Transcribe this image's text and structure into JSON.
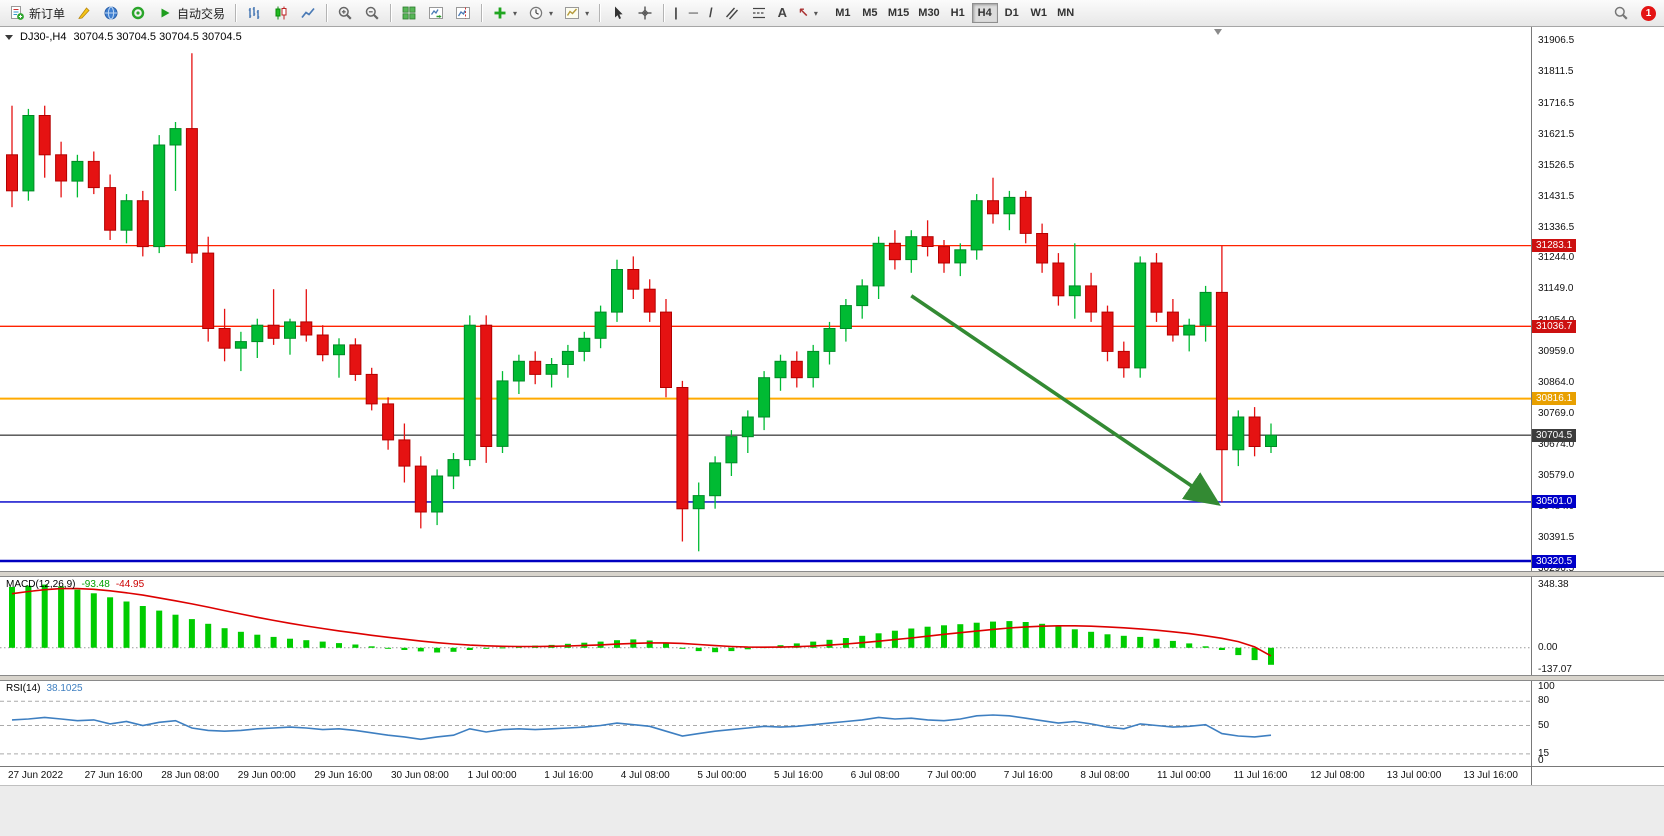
{
  "app": {
    "notification_count": "1"
  },
  "icons": {
    "vertical_line": "|",
    "horizontal_line": "─",
    "trendline": "/",
    "text_tool": "A",
    "arrows_tool": "↖",
    "dropdown_caret": "▾"
  },
  "toolbar": {
    "new_order_label": "新订单",
    "autotrading_label": "自动交易",
    "timeframes": [
      "M1",
      "M5",
      "M15",
      "M30",
      "H1",
      "H4",
      "D1",
      "W1",
      "MN"
    ],
    "active_timeframe": "H4"
  },
  "chart": {
    "title_symbol": "DJ30-,H4",
    "title_quote": "30704.5 30704.5 30704.5 30704.5",
    "price_axis_labels": [
      "31906.5",
      "31811.5",
      "31716.5",
      "31621.5",
      "31526.5",
      "31431.5",
      "31336.5",
      "31244.0",
      "31149.0",
      "31054.0",
      "30959.0",
      "30864.0",
      "30769.0",
      "30674.0",
      "30579.0",
      "30484.0",
      "30391.5",
      "30296.5"
    ],
    "price_badges": [
      {
        "text": "31283.1",
        "bg": "#cc1010"
      },
      {
        "text": "31036.7",
        "bg": "#cc1010"
      },
      {
        "text": "30816.1",
        "bg": "#e8a000"
      },
      {
        "text": "30704.5",
        "bg": "#3c3c3c"
      },
      {
        "text": "30501.0",
        "bg": "#0000c8"
      },
      {
        "text": "30320.5",
        "bg": "#0000c8"
      }
    ],
    "time_axis_labels": [
      "27 Jun 2022",
      "27 Jun 16:00",
      "28 Jun 08:00",
      "29 Jun 00:00",
      "29 Jun 16:00",
      "30 Jun 08:00",
      "1 Jul 00:00",
      "1 Jul 16:00",
      "4 Jul 08:00",
      "5 Jul 00:00",
      "5 Jul 16:00",
      "6 Jul 08:00",
      "7 Jul 00:00",
      "7 Jul 16:00",
      "8 Jul 08:00",
      "11 Jul 00:00",
      "11 Jul 16:00",
      "12 Jul 08:00",
      "13 Jul 00:00",
      "13 Jul 16:00"
    ]
  },
  "macd_panel": {
    "label": "MACD(12,26,9)",
    "main_value": "-93.48",
    "signal_value": "-44.95",
    "axis_labels": [
      "348.38",
      "0.00",
      "-137.07"
    ]
  },
  "rsi_panel": {
    "label": "RSI(14)",
    "value": "38.1025",
    "axis_labels": [
      "100",
      "80",
      "50",
      "15",
      "0"
    ],
    "levels": [
      80,
      50,
      15
    ]
  },
  "chart_data": {
    "type": "candlestick",
    "title": "DJ30-,H4",
    "symbol": "DJ30-",
    "timeframe": "H4",
    "price_range": [
      30296.5,
      31906.5
    ],
    "colors": {
      "bull": "#00bb33",
      "bull_border": "#008a26",
      "bear": "#e51212",
      "bear_border": "#b30000",
      "macd_histogram": "#00cc00",
      "macd_signal": "#dd0000",
      "rsi_line": "#3e7fc1",
      "arrow": "#338a33"
    },
    "hlines": [
      {
        "price": 31283.1,
        "color": "#ff2200",
        "width": 1.3
      },
      {
        "price": 31036.7,
        "color": "#ff2200",
        "width": 1.3
      },
      {
        "price": 30816.1,
        "color": "#ffaa00",
        "width": 2
      },
      {
        "price": 30704.5,
        "color": "#4a4a4a",
        "width": 1.3
      },
      {
        "price": 30501.0,
        "color": "#2020d0",
        "width": 1.6
      },
      {
        "price": 30320.5,
        "color": "#0000c0",
        "width": 2.6
      }
    ],
    "arrow": {
      "from_index": 55,
      "from_price": 31130,
      "to_index": 74,
      "to_price": 30495
    },
    "ohlc": [
      [
        31560,
        31710,
        31400,
        31450
      ],
      [
        31450,
        31700,
        31420,
        31680
      ],
      [
        31680,
        31710,
        31490,
        31560
      ],
      [
        31560,
        31600,
        31430,
        31480
      ],
      [
        31480,
        31560,
        31430,
        31540
      ],
      [
        31540,
        31570,
        31440,
        31460
      ],
      [
        31460,
        31500,
        31300,
        31330
      ],
      [
        31330,
        31440,
        31290,
        31420
      ],
      [
        31420,
        31450,
        31250,
        31280
      ],
      [
        31280,
        31620,
        31260,
        31590
      ],
      [
        31590,
        31660,
        31450,
        31640
      ],
      [
        31640,
        31870,
        31230,
        31260
      ],
      [
        31260,
        31310,
        30990,
        31030
      ],
      [
        31030,
        31090,
        30930,
        30970
      ],
      [
        30970,
        31020,
        30900,
        30990
      ],
      [
        30990,
        31060,
        30940,
        31040
      ],
      [
        31040,
        31150,
        30980,
        31000
      ],
      [
        31000,
        31060,
        30950,
        31050
      ],
      [
        31050,
        31150,
        30990,
        31010
      ],
      [
        31010,
        31040,
        30930,
        30950
      ],
      [
        30950,
        31000,
        30880,
        30980
      ],
      [
        30980,
        31000,
        30870,
        30890
      ],
      [
        30890,
        30910,
        30780,
        30800
      ],
      [
        30800,
        30820,
        30660,
        30690
      ],
      [
        30690,
        30740,
        30560,
        30610
      ],
      [
        30610,
        30640,
        30420,
        30470
      ],
      [
        30470,
        30600,
        30430,
        30580
      ],
      [
        30580,
        30650,
        30540,
        30630
      ],
      [
        30630,
        31070,
        30610,
        31040
      ],
      [
        31040,
        31070,
        30620,
        30670
      ],
      [
        30670,
        30900,
        30650,
        30870
      ],
      [
        30870,
        30950,
        30830,
        30930
      ],
      [
        30930,
        30960,
        30860,
        30890
      ],
      [
        30890,
        30940,
        30850,
        30920
      ],
      [
        30920,
        30980,
        30880,
        30960
      ],
      [
        30960,
        31020,
        30930,
        31000
      ],
      [
        31000,
        31100,
        30970,
        31080
      ],
      [
        31080,
        31240,
        31050,
        31210
      ],
      [
        31210,
        31250,
        31120,
        31150
      ],
      [
        31150,
        31180,
        31050,
        31080
      ],
      [
        31080,
        31120,
        30820,
        30850
      ],
      [
        30850,
        30870,
        30380,
        30480
      ],
      [
        30480,
        30560,
        30350,
        30520
      ],
      [
        30520,
        30640,
        30480,
        30620
      ],
      [
        30620,
        30720,
        30580,
        30700
      ],
      [
        30700,
        30780,
        30650,
        30760
      ],
      [
        30760,
        30900,
        30720,
        30880
      ],
      [
        30880,
        30950,
        30840,
        30930
      ],
      [
        30930,
        30960,
        30850,
        30880
      ],
      [
        30880,
        30980,
        30850,
        30960
      ],
      [
        30960,
        31050,
        30920,
        31030
      ],
      [
        31030,
        31120,
        30990,
        31100
      ],
      [
        31100,
        31180,
        31060,
        31160
      ],
      [
        31160,
        31310,
        31120,
        31290
      ],
      [
        31290,
        31330,
        31210,
        31240
      ],
      [
        31240,
        31330,
        31200,
        31310
      ],
      [
        31310,
        31360,
        31250,
        31280
      ],
      [
        31280,
        31300,
        31200,
        31230
      ],
      [
        31230,
        31290,
        31190,
        31270
      ],
      [
        31270,
        31440,
        31240,
        31420
      ],
      [
        31420,
        31490,
        31350,
        31380
      ],
      [
        31380,
        31450,
        31330,
        31430
      ],
      [
        31430,
        31450,
        31290,
        31320
      ],
      [
        31320,
        31350,
        31200,
        31230
      ],
      [
        31230,
        31260,
        31100,
        31130
      ],
      [
        31130,
        31290,
        31060,
        31160
      ],
      [
        31160,
        31200,
        31050,
        31080
      ],
      [
        31080,
        31100,
        30930,
        30960
      ],
      [
        30960,
        30990,
        30880,
        30910
      ],
      [
        30910,
        31250,
        30880,
        31230
      ],
      [
        31230,
        31260,
        31050,
        31080
      ],
      [
        31080,
        31120,
        30990,
        31010
      ],
      [
        31010,
        31060,
        30960,
        31040
      ],
      [
        31040,
        31160,
        30990,
        31140
      ],
      [
        31140,
        31283,
        30500,
        30660
      ],
      [
        30660,
        30780,
        30610,
        30760
      ],
      [
        30760,
        30790,
        30640,
        30670
      ],
      [
        30670,
        30740,
        30650,
        30704.5
      ]
    ],
    "indicators": {
      "macd_histogram": [
        335,
        342,
        348,
        338,
        320,
        300,
        278,
        255,
        230,
        205,
        182,
        158,
        132,
        108,
        88,
        72,
        60,
        50,
        42,
        34,
        26,
        18,
        8,
        -2,
        -12,
        -20,
        -26,
        -22,
        -12,
        -4,
        2,
        8,
        12,
        16,
        22,
        28,
        34,
        42,
        46,
        40,
        24,
        0,
        -18,
        -24,
        -18,
        -8,
        4,
        14,
        24,
        34,
        44,
        54,
        66,
        80,
        94,
        106,
        116,
        124,
        130,
        138,
        144,
        147,
        142,
        132,
        118,
        102,
        88,
        74,
        66,
        60,
        50,
        38,
        24,
        8,
        -12,
        -40,
        -68,
        -93.48
      ],
      "macd_signal": [
        298,
        310,
        320,
        326,
        326,
        322,
        314,
        303,
        290,
        275,
        259,
        242,
        224,
        205,
        186,
        168,
        151,
        135,
        120,
        106,
        93,
        81,
        69,
        58,
        47,
        37,
        28,
        21,
        15,
        11,
        8,
        7,
        7,
        8,
        10,
        13,
        16,
        20,
        24,
        27,
        27,
        24,
        18,
        12,
        7,
        4,
        3,
        4,
        6,
        10,
        15,
        21,
        28,
        36,
        45,
        54,
        64,
        74,
        83,
        92,
        101,
        109,
        115,
        119,
        121,
        121,
        119,
        115,
        110,
        104,
        97,
        88,
        78,
        66,
        52,
        34,
        5,
        -44.95
      ],
      "rsi": [
        57,
        58,
        60,
        58,
        56,
        57,
        52,
        55,
        50,
        54,
        56,
        47,
        44,
        43,
        44,
        46,
        47,
        48,
        47,
        45,
        46,
        44,
        41,
        38,
        36,
        33,
        36,
        38,
        46,
        42,
        45,
        46,
        45,
        46,
        47,
        48,
        50,
        53,
        51,
        49,
        43,
        37,
        40,
        43,
        45,
        47,
        49,
        48,
        49,
        51,
        53,
        55,
        57,
        60,
        58,
        59,
        57,
        56,
        58,
        62,
        63,
        62,
        59,
        56,
        53,
        55,
        52,
        48,
        46,
        52,
        50,
        48,
        49,
        51,
        40,
        37,
        36,
        38.1
      ]
    }
  }
}
